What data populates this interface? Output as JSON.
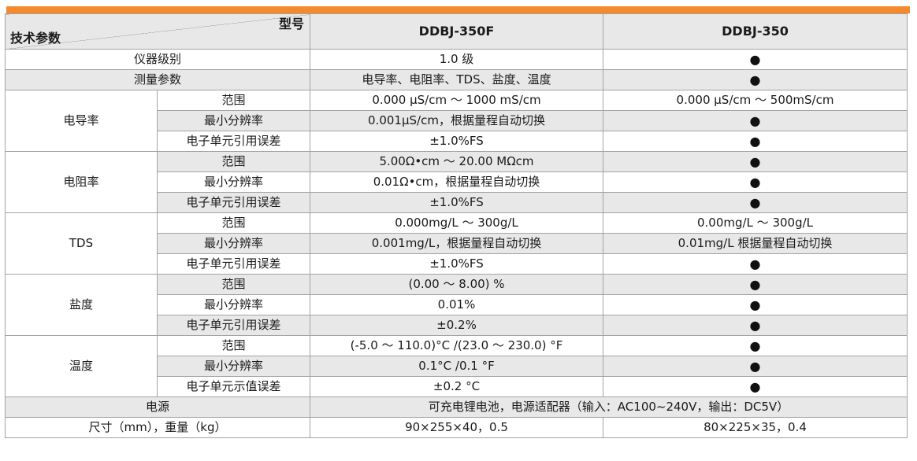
{
  "accent_color": "#F6892B",
  "shade_color": "#e8e8e8",
  "table": {
    "corner": {
      "top_right": "型号",
      "bottom_left": "技术参数"
    },
    "model_columns": [
      "DDBJ-350F",
      "DDBJ-350"
    ],
    "dot_symbol": "●",
    "rows": [
      [
        {
          "t": "仪器级别",
          "cs": 2,
          "k": "rowlabel"
        },
        {
          "t": "1.0 级",
          "k": "val"
        },
        {
          "t": "●",
          "k": "dot"
        }
      ],
      [
        {
          "t": "测量参数",
          "cs": 2,
          "k": "rowlabel"
        },
        {
          "t": "电导率、电阻率、TDS、盐度、温度",
          "k": "val"
        },
        {
          "t": "●",
          "k": "dot"
        }
      ],
      [
        {
          "t": "电导率",
          "rs": 3,
          "k": "group"
        },
        {
          "t": "范围",
          "k": "sub"
        },
        {
          "t": "0.000 μS/cm ～ 1000 mS/cm",
          "k": "val"
        },
        {
          "t": "0.000 μS/cm ～ 500mS/cm",
          "k": "val"
        }
      ],
      [
        {
          "t": "最小分辨率",
          "k": "sub"
        },
        {
          "t": "0.001μS/cm，根据量程自动切换",
          "k": "val"
        },
        {
          "t": "●",
          "k": "dot"
        }
      ],
      [
        {
          "t": "电子单元引用误差",
          "k": "sub"
        },
        {
          "t": "±1.0%FS",
          "k": "val"
        },
        {
          "t": "●",
          "k": "dot"
        }
      ],
      [
        {
          "t": "电阻率",
          "rs": 3,
          "k": "group"
        },
        {
          "t": "范围",
          "k": "sub"
        },
        {
          "t": "5.00Ω•cm ～ 20.00 MΩcm",
          "k": "val"
        },
        {
          "t": "●",
          "k": "dot"
        }
      ],
      [
        {
          "t": "最小分辨率",
          "k": "sub"
        },
        {
          "t": "0.01Ω•cm，根据量程自动切换",
          "k": "val"
        },
        {
          "t": "●",
          "k": "dot"
        }
      ],
      [
        {
          "t": "电子单元引用误差",
          "k": "sub"
        },
        {
          "t": "±1.0%FS",
          "k": "val"
        },
        {
          "t": "●",
          "k": "dot"
        }
      ],
      [
        {
          "t": "TDS",
          "rs": 3,
          "k": "group"
        },
        {
          "t": "范围",
          "k": "sub"
        },
        {
          "t": "0.000mg/L ～ 300g/L",
          "k": "val"
        },
        {
          "t": "0.00mg/L ～ 300g/L",
          "k": "val"
        }
      ],
      [
        {
          "t": "最小分辨率",
          "k": "sub"
        },
        {
          "t": "0.001mg/L，根据量程自动切换",
          "k": "val"
        },
        {
          "t": "0.01mg/L 根据量程自动切换",
          "k": "val"
        }
      ],
      [
        {
          "t": "电子单元引用误差",
          "k": "sub"
        },
        {
          "t": "±1.0%FS",
          "k": "val"
        },
        {
          "t": "●",
          "k": "dot"
        }
      ],
      [
        {
          "t": "盐度",
          "rs": 3,
          "k": "group"
        },
        {
          "t": "范围",
          "k": "sub"
        },
        {
          "t": "(0.00 ～ 8.00) %",
          "k": "val"
        },
        {
          "t": "●",
          "k": "dot"
        }
      ],
      [
        {
          "t": "最小分辨率",
          "k": "sub"
        },
        {
          "t": "0.01%",
          "k": "val"
        },
        {
          "t": "●",
          "k": "dot"
        }
      ],
      [
        {
          "t": "电子单元引用误差",
          "k": "sub"
        },
        {
          "t": "±0.2%",
          "k": "val"
        },
        {
          "t": "●",
          "k": "dot"
        }
      ],
      [
        {
          "t": "温度",
          "rs": 3,
          "k": "group"
        },
        {
          "t": "范围",
          "k": "sub"
        },
        {
          "t": "(-5.0 ～ 110.0)°C /(23.0 ～ 230.0) °F",
          "k": "val"
        },
        {
          "t": "●",
          "k": "dot"
        }
      ],
      [
        {
          "t": "最小分辨率",
          "k": "sub"
        },
        {
          "t": "0.1°C /0.1 °F",
          "k": "val"
        },
        {
          "t": "●",
          "k": "dot"
        }
      ],
      [
        {
          "t": "电子单元示值误差",
          "k": "sub"
        },
        {
          "t": "±0.2 °C",
          "k": "val"
        },
        {
          "t": "●",
          "k": "dot"
        }
      ],
      [
        {
          "t": "电源",
          "cs": 2,
          "k": "rowlabel"
        },
        {
          "t": "可充电锂电池，电源适配器（输入：AC100~240V，输出：DC5V）",
          "cs": 2,
          "k": "val"
        }
      ],
      [
        {
          "t": "尺寸（mm），重量（kg）",
          "cs": 2,
          "k": "rowlabel"
        },
        {
          "t": "90×255×40，0.5",
          "k": "val"
        },
        {
          "t": "80×225×35，0.4",
          "k": "val"
        }
      ]
    ]
  }
}
